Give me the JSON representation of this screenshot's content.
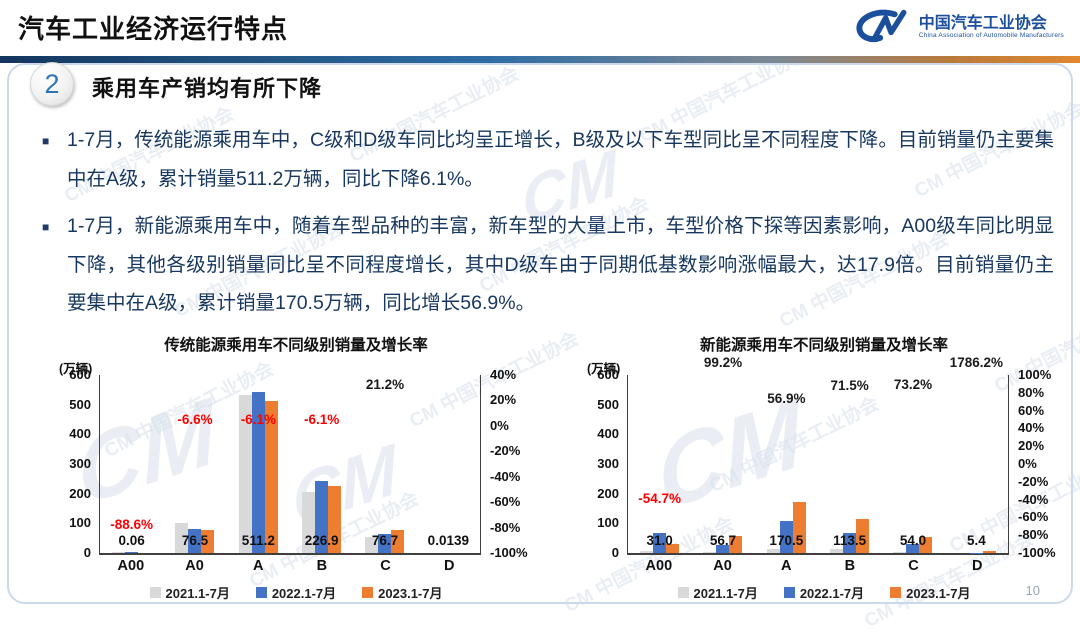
{
  "header": {
    "title": "汽车工业经济运行特点",
    "logo": {
      "monogram": "CM",
      "org_cn": "中国汽车工业协会",
      "org_en": "China Association of Automobile Manufacturers"
    }
  },
  "slide": {
    "section_number": "2",
    "section_title": "乘用车产销均有所下降",
    "bullets": [
      "1-7月，传统能源乘用车中，C级和D级车同比均呈正增长，B级及以下车型同比呈不同程度下降。目前销量仍主要集中在A级，累计销量511.2万辆，同比下降6.1%。",
      "1-7月，新能源乘用车中，随着车型品种的丰富，新车型的大量上市，车型价格下探等因素影响，A00级车同比明显下降，其他各级别销量同比呈不同程度增长，其中D级车由于同期低基数影响涨幅最大，达17.9倍。目前销量仍主要集中在A级，累计销量170.5万辆，同比增长56.9%。"
    ],
    "watermark": "中国汽车工业协会",
    "page_number": "10"
  },
  "chart_data": [
    {
      "type": "bar",
      "title": "传统能源乘用车不同级别销量及增长率",
      "unit_label": "(万辆)",
      "categories": [
        "A00",
        "A0",
        "A",
        "B",
        "C",
        "D"
      ],
      "series": [
        {
          "name": "2021.1-7月",
          "color": "#D9D9D9",
          "values": [
            0.5,
            100,
            534,
            205,
            55,
            0.05
          ]
        },
        {
          "name": "2022.1-7月",
          "color": "#4472C4",
          "values": [
            0.53,
            81.9,
            544.4,
            241.6,
            63.3,
            0.05
          ]
        },
        {
          "name": "2023.1-7月",
          "color": "#ED7D31",
          "values": [
            0.06,
            76.5,
            511.2,
            226.9,
            76.7,
            0.0139
          ]
        }
      ],
      "value_labels": [
        "0.06",
        "76.5",
        "511.2",
        "226.9",
        "76.7",
        "0.0139"
      ],
      "growth_rates": [
        {
          "label": "-88.6%",
          "value": -88.6
        },
        {
          "label": "-6.6%",
          "value": -6.6
        },
        {
          "label": "-6.1%",
          "value": -6.1
        },
        {
          "label": "-6.1%",
          "value": -6.1
        },
        {
          "label": "21.2%",
          "value": 21.2
        },
        null
      ],
      "left_axis": {
        "min": 0,
        "max": 600,
        "ticks": [
          "600",
          "500",
          "400",
          "300",
          "200",
          "100",
          "0"
        ]
      },
      "right_axis": {
        "min": -100,
        "max": 40,
        "ticks": [
          "40%",
          "20%",
          "0%",
          "-20%",
          "-40%",
          "-60%",
          "-80%",
          "-100%"
        ]
      },
      "legend_position": "bottom",
      "grid": false
    },
    {
      "type": "bar",
      "title": "新能源乘用车不同级别销量及增长率",
      "unit_label": "(万辆)",
      "categories": [
        "A00",
        "A0",
        "A",
        "B",
        "C",
        "D"
      ],
      "series": [
        {
          "name": "2021.1-7月",
          "color": "#D9D9D9",
          "values": [
            8,
            1.5,
            15,
            13,
            1,
            0.05
          ]
        },
        {
          "name": "2022.1-7月",
          "color": "#4472C4",
          "values": [
            68.4,
            28.5,
            108.7,
            66.2,
            31.2,
            0.3
          ]
        },
        {
          "name": "2023.1-7月",
          "color": "#ED7D31",
          "values": [
            31.0,
            56.7,
            170.5,
            113.5,
            54.0,
            5.4
          ]
        }
      ],
      "value_labels": [
        "31.0",
        "56.7",
        "170.5",
        "113.5",
        "54.0",
        "5.4"
      ],
      "growth_rates": [
        {
          "label": "-54.7%",
          "value": -54.7
        },
        {
          "label": "99.2%",
          "value": 99.2
        },
        {
          "label": "56.9%",
          "value": 56.9
        },
        {
          "label": "71.5%",
          "value": 71.5
        },
        {
          "label": "73.2%",
          "value": 73.2
        },
        {
          "label": "1786.2%",
          "value": 1786.2
        }
      ],
      "left_axis": {
        "min": 0,
        "max": 600,
        "ticks": [
          "600",
          "500",
          "400",
          "300",
          "200",
          "100",
          "0"
        ]
      },
      "right_axis": {
        "min": -100,
        "max": 100,
        "ticks": [
          "100%",
          "80%",
          "60%",
          "40%",
          "20%",
          "0%",
          "-20%",
          "-40%",
          "-60%",
          "-80%",
          "-100%"
        ]
      },
      "legend_position": "bottom",
      "grid": false
    }
  ],
  "colors": {
    "bullet_text": "#17375E",
    "negative_rate": "#FF0000",
    "positive_rate": "#1A1A1A",
    "bar_2021": "#D9D9D9",
    "bar_2022": "#4472C4",
    "bar_2023": "#ED7D31",
    "logo_blue": "#1B4F9C"
  }
}
